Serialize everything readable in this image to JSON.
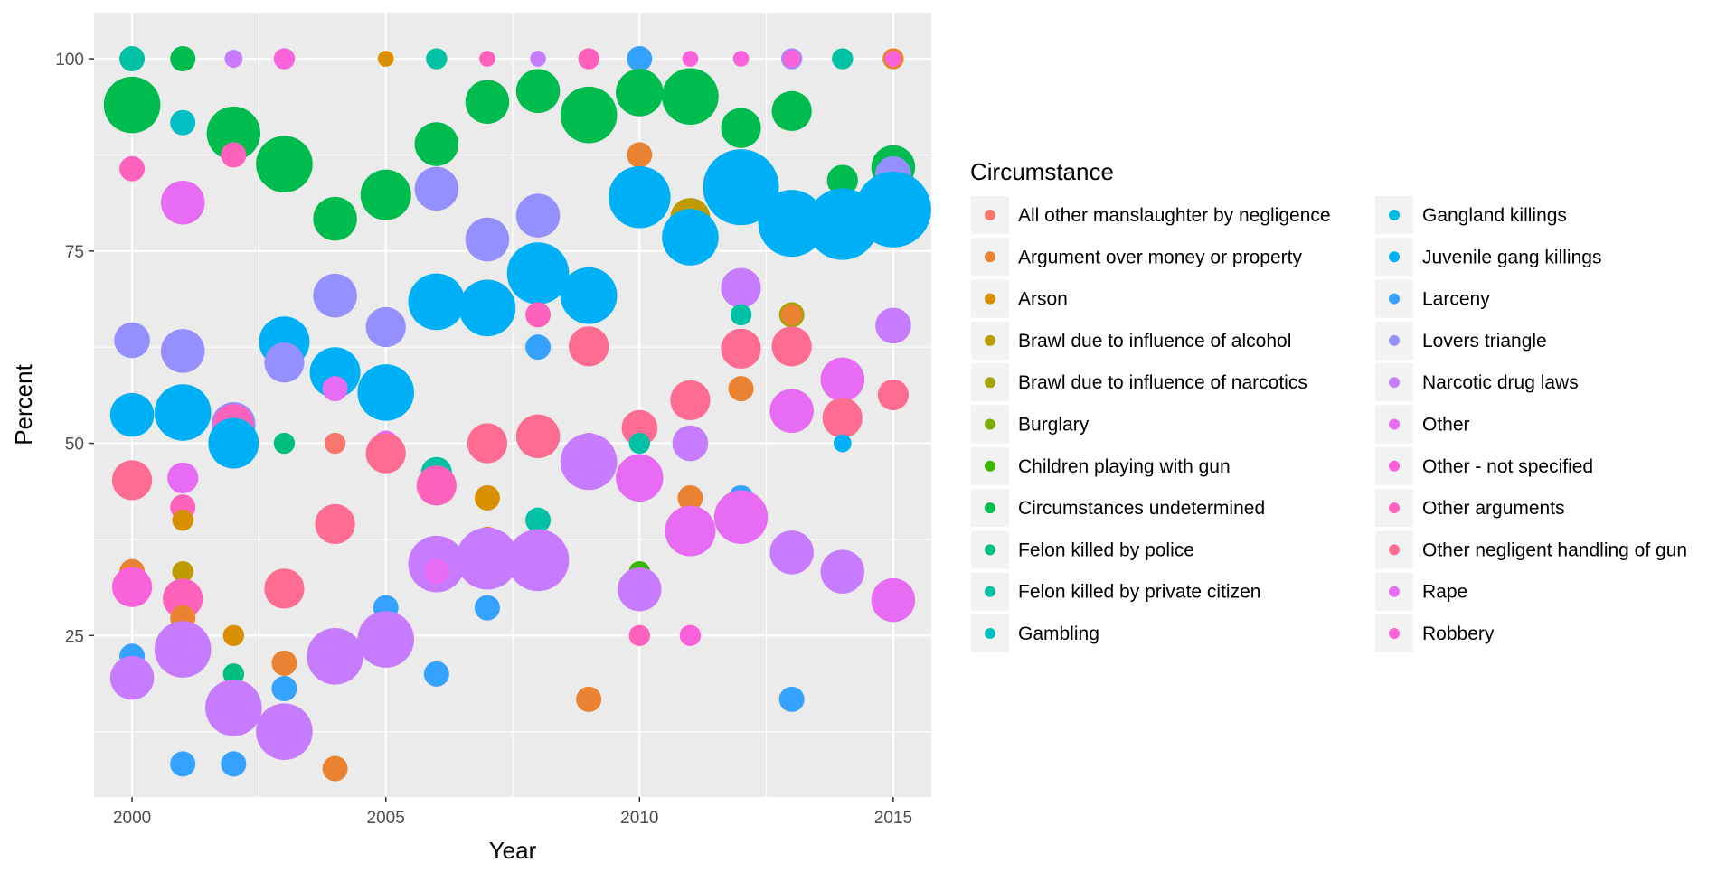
{
  "chart_data": {
    "type": "scatter",
    "xlabel": "Year",
    "ylabel": "Percent",
    "xlim": [
      1999.25,
      2015.75
    ],
    "ylim": [
      4,
      106
    ],
    "x_ticks": [
      2000,
      2005,
      2010,
      2015
    ],
    "y_ticks": [
      25,
      50,
      75,
      100
    ],
    "grid": true,
    "legend": {
      "title": "Circumstance",
      "placement": "right",
      "entries": [
        {
          "name": "All other manslaughter by negligence",
          "color": "#F8766D"
        },
        {
          "name": "Argument over money or property",
          "color": "#EA8331"
        },
        {
          "name": "Arson",
          "color": "#D89000"
        },
        {
          "name": "Brawl due to influence of alcohol",
          "color": "#C09B00"
        },
        {
          "name": "Brawl due to influence of narcotics",
          "color": "#A3A500"
        },
        {
          "name": "Burglary",
          "color": "#7CAE00"
        },
        {
          "name": "Children playing with gun",
          "color": "#39B600"
        },
        {
          "name": "Circumstances undetermined",
          "color": "#00BB4E"
        },
        {
          "name": "Felon killed by police",
          "color": "#00BF7D"
        },
        {
          "name": "Felon killed by private citizen",
          "color": "#00C1A3"
        },
        {
          "name": "Gambling",
          "color": "#00BFC4"
        },
        {
          "name": "Gangland killings",
          "color": "#00BAE0"
        },
        {
          "name": "Juvenile gang killings",
          "color": "#00B0F6"
        },
        {
          "name": "Larceny",
          "color": "#35A2FF"
        },
        {
          "name": "Lovers triangle",
          "color": "#9590FF"
        },
        {
          "name": "Narcotic drug laws",
          "color": "#C77CFF"
        },
        {
          "name": "Other",
          "color": "#E76BF3"
        },
        {
          "name": "Other - not specified",
          "color": "#FA62DB"
        },
        {
          "name": "Other arguments",
          "color": "#FF62BC"
        },
        {
          "name": "Other negligent handling of gun",
          "color": "#FF6C91"
        },
        {
          "name": "Rape",
          "color": "#E76BF3"
        },
        {
          "name": "Robbery",
          "color": "#FA62DB"
        }
      ]
    },
    "points": [
      {
        "x": 2000,
        "y": 100,
        "s": 1,
        "c": "#00C1A3"
      },
      {
        "x": 2000,
        "y": 94,
        "s": 5,
        "c": "#00BB4E"
      },
      {
        "x": 2000,
        "y": 85.7,
        "s": 1,
        "c": "#FF62BC"
      },
      {
        "x": 2000,
        "y": 63.4,
        "s": 2,
        "c": "#9590FF"
      },
      {
        "x": 2000,
        "y": 53.7,
        "s": 3,
        "c": "#00B0F6"
      },
      {
        "x": 2000,
        "y": 45.2,
        "s": 2.5,
        "c": "#FF6C91"
      },
      {
        "x": 2000,
        "y": 33.3,
        "s": 1,
        "c": "#EA8331"
      },
      {
        "x": 2000,
        "y": 31.3,
        "s": 2.5,
        "c": "#FA62DB"
      },
      {
        "x": 2000,
        "y": 22.3,
        "s": 1,
        "c": "#35A2FF"
      },
      {
        "x": 2000,
        "y": 19.5,
        "s": 3,
        "c": "#C77CFF"
      },
      {
        "x": 2001,
        "y": 100,
        "s": 1,
        "c": "#00BB4E"
      },
      {
        "x": 2001,
        "y": 91.7,
        "s": 1,
        "c": "#00BFC4"
      },
      {
        "x": 2001,
        "y": 81.3,
        "s": 3,
        "c": "#E76BF3"
      },
      {
        "x": 2001,
        "y": 62,
        "s": 3,
        "c": "#9590FF"
      },
      {
        "x": 2001,
        "y": 54,
        "s": 5,
        "c": "#00B0F6"
      },
      {
        "x": 2001,
        "y": 45.5,
        "s": 1.5,
        "c": "#E76BF3"
      },
      {
        "x": 2001,
        "y": 41.7,
        "s": 1,
        "c": "#FF62BC"
      },
      {
        "x": 2001,
        "y": 40,
        "s": 0.7,
        "c": "#D89000"
      },
      {
        "x": 2001,
        "y": 33.3,
        "s": 0.7,
        "c": "#C09B00"
      },
      {
        "x": 2001,
        "y": 29.8,
        "s": 2.5,
        "c": "#FF62BC"
      },
      {
        "x": 2001,
        "y": 27.3,
        "s": 1,
        "c": "#EA8331"
      },
      {
        "x": 2001,
        "y": 23.2,
        "s": 5,
        "c": "#C77CFF"
      },
      {
        "x": 2001,
        "y": 8.3,
        "s": 1,
        "c": "#35A2FF"
      },
      {
        "x": 2002,
        "y": 100,
        "s": 0.5,
        "c": "#C77CFF"
      },
      {
        "x": 2002,
        "y": 90.3,
        "s": 4.5,
        "c": "#00BB4E"
      },
      {
        "x": 2002,
        "y": 87.5,
        "s": 1,
        "c": "#FF62BC"
      },
      {
        "x": 2002,
        "y": 52.5,
        "s": 3,
        "c": "#9590FF"
      },
      {
        "x": 2002,
        "y": 52.5,
        "s": 2.5,
        "c": "#FF62BC"
      },
      {
        "x": 2002,
        "y": 50,
        "s": 4,
        "c": "#00B0F6"
      },
      {
        "x": 2002,
        "y": 25,
        "s": 0.7,
        "c": "#D89000"
      },
      {
        "x": 2002,
        "y": 20,
        "s": 0.7,
        "c": "#00BF7D"
      },
      {
        "x": 2002,
        "y": 15.6,
        "s": 5,
        "c": "#C77CFF"
      },
      {
        "x": 2002,
        "y": 8.3,
        "s": 1,
        "c": "#35A2FF"
      },
      {
        "x": 2003,
        "y": 100,
        "s": 0.7,
        "c": "#FA62DB"
      },
      {
        "x": 2003,
        "y": 86.3,
        "s": 5,
        "c": "#00BB4E"
      },
      {
        "x": 2003,
        "y": 63.2,
        "s": 4,
        "c": "#00B0F6"
      },
      {
        "x": 2003,
        "y": 60.5,
        "s": 2.5,
        "c": "#9590FF"
      },
      {
        "x": 2003,
        "y": 50,
        "s": 0.7,
        "c": "#00BF7D"
      },
      {
        "x": 2003,
        "y": 31.1,
        "s": 2.5,
        "c": "#FF6C91"
      },
      {
        "x": 2003,
        "y": 21.4,
        "s": 1,
        "c": "#EA8331"
      },
      {
        "x": 2003,
        "y": 18.1,
        "s": 1,
        "c": "#35A2FF"
      },
      {
        "x": 2003,
        "y": 12.5,
        "s": 5,
        "c": "#C77CFF"
      },
      {
        "x": 2004,
        "y": 79.2,
        "s": 3,
        "c": "#00BB4E"
      },
      {
        "x": 2004,
        "y": 69.2,
        "s": 3,
        "c": "#9590FF"
      },
      {
        "x": 2004,
        "y": 59.2,
        "s": 4,
        "c": "#00B0F6"
      },
      {
        "x": 2004,
        "y": 57.1,
        "s": 1,
        "c": "#E76BF3"
      },
      {
        "x": 2004,
        "y": 50,
        "s": 0.7,
        "c": "#F8766D"
      },
      {
        "x": 2004,
        "y": 39.5,
        "s": 2.5,
        "c": "#FF6C91"
      },
      {
        "x": 2004,
        "y": 22.3,
        "s": 5,
        "c": "#C77CFF"
      },
      {
        "x": 2004,
        "y": 7.7,
        "s": 1,
        "c": "#EA8331"
      },
      {
        "x": 2005,
        "y": 100,
        "s": 0.4,
        "c": "#D89000"
      },
      {
        "x": 2005,
        "y": 82.3,
        "s": 4,
        "c": "#00BB4E"
      },
      {
        "x": 2005,
        "y": 65.1,
        "s": 2.5,
        "c": "#9590FF"
      },
      {
        "x": 2005,
        "y": 56.6,
        "s": 5,
        "c": "#00B0F6"
      },
      {
        "x": 2005,
        "y": 50,
        "s": 1,
        "c": "#E76BF3"
      },
      {
        "x": 2005,
        "y": 48.7,
        "s": 2.5,
        "c": "#FF6C91"
      },
      {
        "x": 2005,
        "y": 28.6,
        "s": 1,
        "c": "#35A2FF"
      },
      {
        "x": 2005,
        "y": 24.5,
        "s": 5,
        "c": "#C77CFF"
      },
      {
        "x": 2006,
        "y": 100,
        "s": 0.7,
        "c": "#00C1A3"
      },
      {
        "x": 2006,
        "y": 88.9,
        "s": 3,
        "c": "#00BB4E"
      },
      {
        "x": 2006,
        "y": 83.1,
        "s": 3,
        "c": "#9590FF"
      },
      {
        "x": 2006,
        "y": 68.4,
        "s": 5,
        "c": "#00B0F6"
      },
      {
        "x": 2006,
        "y": 46.2,
        "s": 1.5,
        "c": "#00C1A3"
      },
      {
        "x": 2006,
        "y": 44.5,
        "s": 2.5,
        "c": "#FF62BC"
      },
      {
        "x": 2006,
        "y": 34.3,
        "s": 5,
        "c": "#C77CFF"
      },
      {
        "x": 2006,
        "y": 33.3,
        "s": 1,
        "c": "#E76BF3"
      },
      {
        "x": 2006,
        "y": 20,
        "s": 1,
        "c": "#35A2FF"
      },
      {
        "x": 2007,
        "y": 100,
        "s": 0.4,
        "c": "#FF62BC"
      },
      {
        "x": 2007,
        "y": 94.4,
        "s": 3,
        "c": "#00BB4E"
      },
      {
        "x": 2007,
        "y": 76.5,
        "s": 3,
        "c": "#9590FF"
      },
      {
        "x": 2007,
        "y": 67.6,
        "s": 5,
        "c": "#00B0F6"
      },
      {
        "x": 2007,
        "y": 50,
        "s": 2.5,
        "c": "#FF6C91"
      },
      {
        "x": 2007,
        "y": 42.9,
        "s": 1,
        "c": "#D89000"
      },
      {
        "x": 2007,
        "y": 37.5,
        "s": 1,
        "c": "#EA8331"
      },
      {
        "x": 2007,
        "y": 35,
        "s": 6,
        "c": "#C77CFF"
      },
      {
        "x": 2007,
        "y": 28.6,
        "s": 1,
        "c": "#35A2FF"
      },
      {
        "x": 2008,
        "y": 100,
        "s": 0.4,
        "c": "#C77CFF"
      },
      {
        "x": 2008,
        "y": 95.8,
        "s": 3,
        "c": "#00BB4E"
      },
      {
        "x": 2008,
        "y": 79.6,
        "s": 3,
        "c": "#9590FF"
      },
      {
        "x": 2008,
        "y": 72.1,
        "s": 6,
        "c": "#00B0F6"
      },
      {
        "x": 2008,
        "y": 66.7,
        "s": 1,
        "c": "#FF62BC"
      },
      {
        "x": 2008,
        "y": 62.5,
        "s": 1,
        "c": "#35A2FF"
      },
      {
        "x": 2008,
        "y": 50.9,
        "s": 3,
        "c": "#FF6C91"
      },
      {
        "x": 2008,
        "y": 40,
        "s": 1,
        "c": "#00C1A3"
      },
      {
        "x": 2008,
        "y": 34.8,
        "s": 6,
        "c": "#C77CFF"
      },
      {
        "x": 2009,
        "y": 100,
        "s": 0.7,
        "c": "#FF62BC"
      },
      {
        "x": 2009,
        "y": 92.7,
        "s": 5,
        "c": "#00BB4E"
      },
      {
        "x": 2009,
        "y": 70,
        "s": 2.5,
        "c": "#9590FF"
      },
      {
        "x": 2009,
        "y": 69.2,
        "s": 5,
        "c": "#00B0F6"
      },
      {
        "x": 2009,
        "y": 62.6,
        "s": 2.5,
        "c": "#FF6C91"
      },
      {
        "x": 2009,
        "y": 50,
        "s": 0.7,
        "c": "#E76BF3"
      },
      {
        "x": 2009,
        "y": 47.6,
        "s": 5,
        "c": "#C77CFF"
      },
      {
        "x": 2009,
        "y": 16.7,
        "s": 1,
        "c": "#EA8331"
      },
      {
        "x": 2010,
        "y": 100,
        "s": 1,
        "c": "#35A2FF"
      },
      {
        "x": 2010,
        "y": 95.6,
        "s": 3.5,
        "c": "#00BB4E"
      },
      {
        "x": 2010,
        "y": 87.5,
        "s": 1,
        "c": "#EA8331"
      },
      {
        "x": 2010,
        "y": 82,
        "s": 6,
        "c": "#00B0F6"
      },
      {
        "x": 2010,
        "y": 52,
        "s": 2,
        "c": "#FF6C91"
      },
      {
        "x": 2010,
        "y": 50,
        "s": 0.7,
        "c": "#00C1A3"
      },
      {
        "x": 2010,
        "y": 45.5,
        "s": 3.5,
        "c": "#E76BF3"
      },
      {
        "x": 2010,
        "y": 33.3,
        "s": 0.7,
        "c": "#39B600"
      },
      {
        "x": 2010,
        "y": 31,
        "s": 3,
        "c": "#C77CFF"
      },
      {
        "x": 2010,
        "y": 25,
        "s": 0.7,
        "c": "#FF62BC"
      },
      {
        "x": 2011,
        "y": 100,
        "s": 0.4,
        "c": "#FA62DB"
      },
      {
        "x": 2011,
        "y": 95.1,
        "s": 5,
        "c": "#00BB4E"
      },
      {
        "x": 2011,
        "y": 79.3,
        "s": 2.5,
        "c": "#C09B00"
      },
      {
        "x": 2011,
        "y": 76.8,
        "s": 5,
        "c": "#00B0F6"
      },
      {
        "x": 2011,
        "y": 55.6,
        "s": 2.5,
        "c": "#FF6C91"
      },
      {
        "x": 2011,
        "y": 50,
        "s": 2,
        "c": "#C77CFF"
      },
      {
        "x": 2011,
        "y": 42.9,
        "s": 1,
        "c": "#EA8331"
      },
      {
        "x": 2011,
        "y": 39.6,
        "s": 1,
        "c": "#35A2FF"
      },
      {
        "x": 2011,
        "y": 38.6,
        "s": 4,
        "c": "#E76BF3"
      },
      {
        "x": 2011,
        "y": 25,
        "s": 0.7,
        "c": "#FA62DB"
      },
      {
        "x": 2012,
        "y": 100,
        "s": 0.4,
        "c": "#FA62DB"
      },
      {
        "x": 2012,
        "y": 91,
        "s": 2.5,
        "c": "#00BB4E"
      },
      {
        "x": 2012,
        "y": 83.3,
        "s": 9,
        "c": "#00B0F6"
      },
      {
        "x": 2012,
        "y": 70.2,
        "s": 2.5,
        "c": "#C77CFF"
      },
      {
        "x": 2012,
        "y": 66.7,
        "s": 0.7,
        "c": "#00C1A3"
      },
      {
        "x": 2012,
        "y": 62.3,
        "s": 2.5,
        "c": "#FF6C91"
      },
      {
        "x": 2012,
        "y": 57.1,
        "s": 1,
        "c": "#EA8331"
      },
      {
        "x": 2012,
        "y": 42.9,
        "s": 1,
        "c": "#35A2FF"
      },
      {
        "x": 2012,
        "y": 40.4,
        "s": 4.5,
        "c": "#E76BF3"
      },
      {
        "x": 2013,
        "y": 100,
        "s": 0.7,
        "c": "#9590FF"
      },
      {
        "x": 2013,
        "y": 100,
        "s": 0.5,
        "c": "#FA62DB"
      },
      {
        "x": 2013,
        "y": 93.2,
        "s": 2.5,
        "c": "#00BB4E"
      },
      {
        "x": 2013,
        "y": 78.6,
        "s": 7,
        "c": "#00B0F6"
      },
      {
        "x": 2013,
        "y": 66.7,
        "s": 1,
        "c": "#A3A500"
      },
      {
        "x": 2013,
        "y": 66.7,
        "s": 0.7,
        "c": "#EA8331"
      },
      {
        "x": 2013,
        "y": 62.6,
        "s": 2.5,
        "c": "#FF6C91"
      },
      {
        "x": 2013,
        "y": 54.2,
        "s": 3,
        "c": "#E76BF3"
      },
      {
        "x": 2013,
        "y": 35.8,
        "s": 3,
        "c": "#C77CFF"
      },
      {
        "x": 2013,
        "y": 16.7,
        "s": 1,
        "c": "#35A2FF"
      },
      {
        "x": 2014,
        "y": 100,
        "s": 0.7,
        "c": "#00C1A3"
      },
      {
        "x": 2014,
        "y": 84.2,
        "s": 1.5,
        "c": "#00BB4E"
      },
      {
        "x": 2014,
        "y": 78.5,
        "s": 8,
        "c": "#00B0F6"
      },
      {
        "x": 2014,
        "y": 58.3,
        "s": 3,
        "c": "#E76BF3"
      },
      {
        "x": 2014,
        "y": 53.3,
        "s": 2.5,
        "c": "#FF6C91"
      },
      {
        "x": 2014,
        "y": 50,
        "s": 0.5,
        "c": "#00B0F6"
      },
      {
        "x": 2014,
        "y": 33.3,
        "s": 3,
        "c": "#C77CFF"
      },
      {
        "x": 2015,
        "y": 100,
        "s": 0.7,
        "c": "#EA8331"
      },
      {
        "x": 2015,
        "y": 100,
        "s": 0.4,
        "c": "#FA62DB"
      },
      {
        "x": 2015,
        "y": 85.9,
        "s": 3,
        "c": "#00BB4E"
      },
      {
        "x": 2015,
        "y": 85,
        "s": 2,
        "c": "#9590FF"
      },
      {
        "x": 2015,
        "y": 80.4,
        "s": 9,
        "c": "#00B0F6"
      },
      {
        "x": 2015,
        "y": 65.3,
        "s": 2,
        "c": "#C77CFF"
      },
      {
        "x": 2015,
        "y": 56.3,
        "s": 1.5,
        "c": "#FF6C91"
      },
      {
        "x": 2015,
        "y": 29.6,
        "s": 3,
        "c": "#E76BF3"
      }
    ]
  }
}
